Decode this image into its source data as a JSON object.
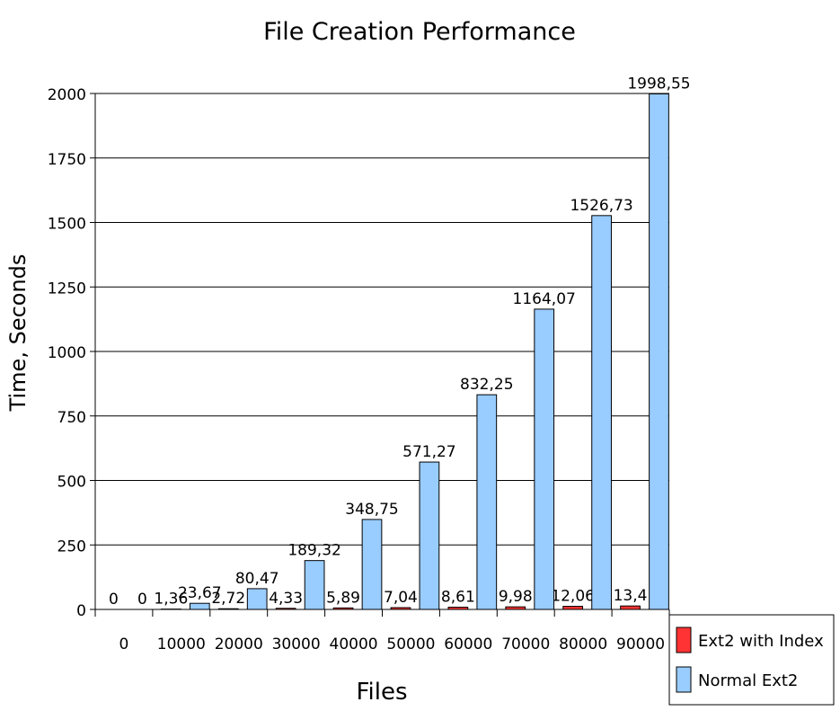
{
  "chart_data": {
    "type": "bar",
    "title": "File Creation Performance",
    "xlabel": "Files",
    "ylabel": "Time, Seconds",
    "categories": [
      "0",
      "10000",
      "20000",
      "30000",
      "40000",
      "50000",
      "60000",
      "70000",
      "80000",
      "90000"
    ],
    "series": [
      {
        "name": "Ext2 with Index",
        "color": "#ff3333",
        "values": [
          0,
          1.36,
          2.72,
          4.33,
          5.89,
          7.04,
          8.61,
          9.98,
          12.06,
          13.4
        ],
        "labels": [
          "0",
          "1,36",
          "2,72",
          "4,33",
          "5,89",
          "7,04",
          "8,61",
          "9,98",
          "12,06",
          "13,4"
        ]
      },
      {
        "name": "Normal Ext2",
        "color": "#99ccff",
        "values": [
          0,
          23.67,
          80.47,
          189.32,
          348.75,
          571.27,
          832.25,
          1164.07,
          1526.73,
          1998.55
        ],
        "labels": [
          "0",
          "23,67",
          "80,47",
          "189,32",
          "348,75",
          "571,27",
          "832,25",
          "1164,07",
          "1526,73",
          "1998,55"
        ]
      }
    ],
    "ylim": [
      0,
      2000
    ],
    "yticks": [
      0,
      250,
      500,
      750,
      1000,
      1250,
      1500,
      1750,
      2000
    ],
    "grid": true,
    "legend": "bottom-right"
  }
}
